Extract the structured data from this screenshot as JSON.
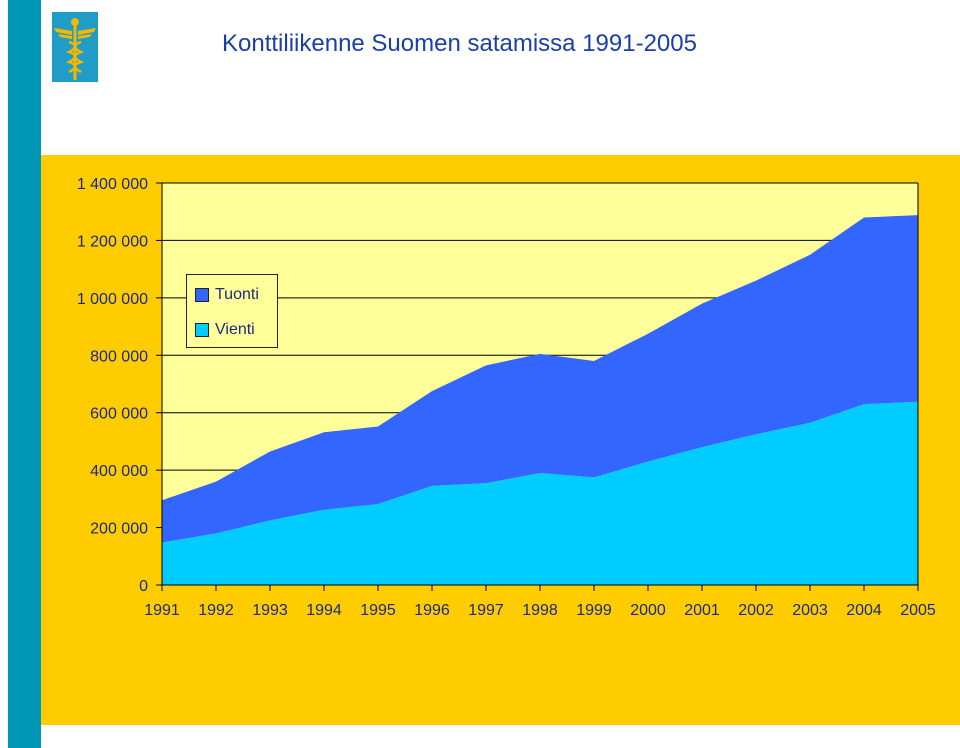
{
  "page": {
    "title": "Konttiliikenne Suomen satamissa 1991-2005",
    "logo_icon": "caduceus-icon"
  },
  "colors": {
    "sidebar": "#0097b6",
    "panel": "#ffcc00",
    "plot_bg": "#ffff99",
    "tuonti": "#3366ff",
    "vienti": "#00ccff",
    "text": "#1a2a80"
  },
  "chart_data": {
    "type": "area",
    "stacked": true,
    "title": "",
    "xlabel": "",
    "ylabel": "",
    "x": [
      "1991",
      "1992",
      "1993",
      "1994",
      "1995",
      "1996",
      "1997",
      "1998",
      "1999",
      "2000",
      "2001",
      "2002",
      "2003",
      "2004",
      "2005"
    ],
    "ylim": [
      0,
      1400000
    ],
    "yticks": [
      0,
      200000,
      400000,
      600000,
      800000,
      1000000,
      1200000,
      1400000
    ],
    "ytick_labels": [
      "0",
      "200 000",
      "400 000",
      "600 000",
      "800 000",
      "1 000 000",
      "1 200 000",
      "1 400 000"
    ],
    "grid": true,
    "legend_position": "top-left",
    "series": [
      {
        "name": "Vienti",
        "color": "#00ccff",
        "values": [
          148000,
          180000,
          225000,
          262000,
          282000,
          345000,
          355000,
          390000,
          375000,
          430000,
          480000,
          525000,
          565000,
          630000,
          638000
        ]
      },
      {
        "name": "Tuonti",
        "color": "#3366ff",
        "values": [
          147000,
          180000,
          240000,
          270000,
          270000,
          330000,
          410000,
          415000,
          405000,
          445000,
          500000,
          535000,
          585000,
          650000,
          650000
        ]
      }
    ],
    "legend_order": [
      "Tuonti",
      "Vienti"
    ]
  }
}
